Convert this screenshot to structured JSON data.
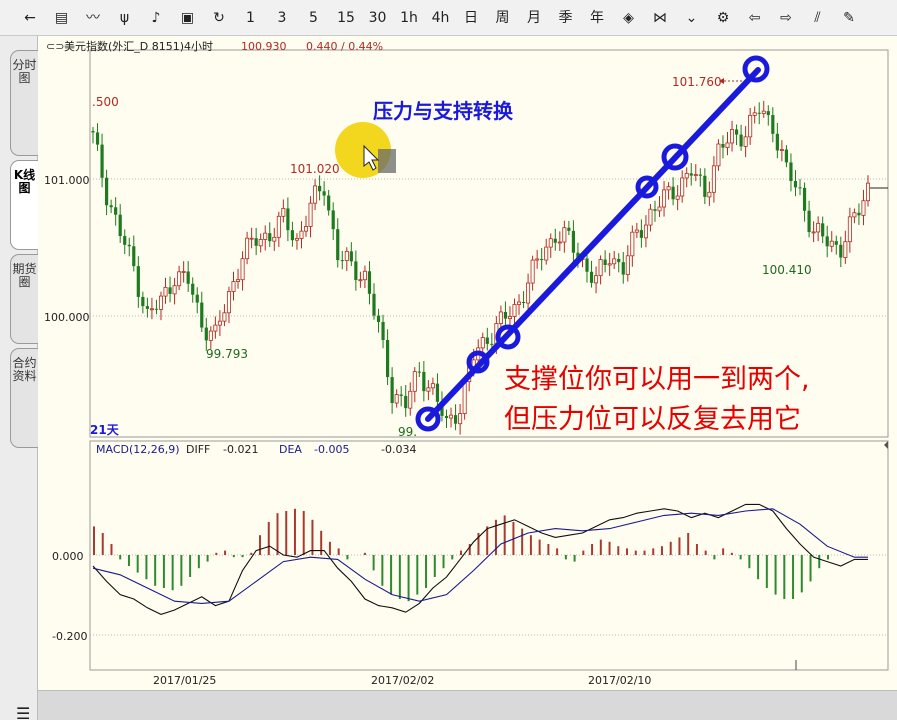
{
  "toolbar": {
    "buttons": [
      {
        "label": "←",
        "icon": "back-arrow-icon"
      },
      {
        "label": "▤",
        "icon": "list-icon"
      },
      {
        "label": "〰",
        "icon": "indicator-line-icon"
      },
      {
        "label": "ψ",
        "icon": "kline-icon"
      },
      {
        "label": "♪",
        "icon": "draw-tool-icon"
      },
      {
        "label": "▣",
        "icon": "save-icon"
      },
      {
        "label": "↻",
        "icon": "refresh-icon"
      },
      {
        "label": "1"
      },
      {
        "label": "3"
      },
      {
        "label": "5"
      },
      {
        "label": "15"
      },
      {
        "label": "30"
      },
      {
        "label": "1h"
      },
      {
        "label": "4h"
      },
      {
        "label": "日"
      },
      {
        "label": "周"
      },
      {
        "label": "月"
      },
      {
        "label": "季"
      },
      {
        "label": "年"
      },
      {
        "label": "◈",
        "icon": "zoom-in-icon"
      },
      {
        "label": "⋈",
        "icon": "zoom-out-icon"
      },
      {
        "label": "⌄",
        "icon": "double-chevron-down-icon"
      },
      {
        "label": "⚙",
        "icon": "gear-icon"
      },
      {
        "label": "⇦",
        "icon": "left-arrow-icon"
      },
      {
        "label": "⇨",
        "icon": "right-arrow-icon"
      },
      {
        "label": "⫽",
        "icon": "line-draw-icon"
      },
      {
        "label": "✎",
        "icon": "eraser-icon"
      }
    ]
  },
  "side_tabs": [
    {
      "label": "分时图",
      "active": false
    },
    {
      "label": "K线图",
      "active": true
    },
    {
      "label": "期货圈",
      "active": false
    },
    {
      "label": "合约资料",
      "active": false
    }
  ],
  "header": {
    "instrument": "美元指数(外汇_D 8151)4小时",
    "price": "100.930",
    "change": "0.440 / 0.44%"
  },
  "annotations": {
    "title": "压力与支持转换",
    "note_line1": "支撑位你可以用一到两个,",
    "note_line2": "但压力位可以反复去用它"
  },
  "price_labels": {
    "high_right": "101.760",
    "left_top": ".500",
    "mid_high": "101.020",
    "low_left": "99.793",
    "low_mid": "99.",
    "low_right": "100.410",
    "period": "21天"
  },
  "macd_header": {
    "name": "MACD(12,26,9)",
    "diff_label": "DIFF",
    "diff_value": "-0.021",
    "dea_label": "DEA",
    "dea_value": "-0.005",
    "macd_value": "-0.034"
  },
  "colors": {
    "up": "#b22a22",
    "down": "#1e7a1e",
    "annotation_blue": "#1a1adc",
    "annotation_red": "#e60000",
    "highlight_yellow": "#f2d20c"
  },
  "chart_data": [
    {
      "type": "candlestick",
      "title": "",
      "y_ticks": [
        100.0,
        101.0
      ],
      "y_tick_labels": [
        "100.000",
        "101.000"
      ],
      "ylim": [
        99.0,
        101.9
      ],
      "x_tick_labels": [
        "2017/01/25",
        "2017/02/02",
        "2017/02/10"
      ],
      "close_path": [
        [
          0,
          101.3
        ],
        [
          3,
          100.9
        ],
        [
          6,
          100.6
        ],
        [
          9,
          100.35
        ],
        [
          12,
          100.0
        ],
        [
          15,
          100.1
        ],
        [
          18,
          100.3
        ],
        [
          21,
          100.25
        ],
        [
          24,
          99.95
        ],
        [
          27,
          99.85
        ],
        [
          30,
          100.15
        ],
        [
          33,
          100.45
        ],
        [
          36,
          100.55
        ],
        [
          39,
          100.6
        ],
        [
          42,
          100.7
        ],
        [
          45,
          100.55
        ],
        [
          48,
          100.8
        ],
        [
          51,
          100.95
        ],
        [
          54,
          100.45
        ],
        [
          57,
          100.35
        ],
        [
          60,
          100.3
        ],
        [
          63,
          99.9
        ],
        [
          66,
          99.45
        ],
        [
          69,
          99.35
        ],
        [
          72,
          99.6
        ],
        [
          75,
          99.45
        ],
        [
          78,
          99.2
        ],
        [
          81,
          99.35
        ],
        [
          84,
          99.7
        ],
        [
          87,
          99.85
        ],
        [
          90,
          99.95
        ],
        [
          93,
          100.05
        ],
        [
          96,
          100.25
        ],
        [
          99,
          100.45
        ],
        [
          102,
          100.6
        ],
        [
          105,
          100.55
        ],
        [
          108,
          100.4
        ],
        [
          111,
          100.25
        ],
        [
          114,
          100.45
        ],
        [
          117,
          100.35
        ],
        [
          120,
          100.6
        ],
        [
          123,
          100.75
        ],
        [
          126,
          100.85
        ],
        [
          129,
          100.95
        ],
        [
          132,
          101.05
        ],
        [
          135,
          100.9
        ],
        [
          138,
          101.2
        ],
        [
          141,
          101.3
        ],
        [
          144,
          101.35
        ],
        [
          147,
          101.5
        ],
        [
          150,
          101.4
        ],
        [
          153,
          101.05
        ],
        [
          156,
          100.9
        ],
        [
          159,
          100.6
        ],
        [
          162,
          100.55
        ],
        [
          165,
          100.5
        ],
        [
          168,
          100.7
        ],
        [
          171,
          100.95
        ]
      ],
      "annotations": [
        {
          "label": "101.760",
          "value": 101.76
        },
        {
          "label": "101.020",
          "value": 101.02
        },
        {
          "label": "99.793",
          "value": 99.793
        },
        {
          "label": "100.410",
          "value": 100.41
        }
      ]
    },
    {
      "type": "line",
      "title": "MACD(12,26,9)",
      "y_ticks": [
        0.0,
        -0.2
      ],
      "y_tick_labels": [
        "0.000",
        "-0.200"
      ],
      "ylim": [
        -0.28,
        0.22
      ],
      "series": [
        {
          "name": "DIFF",
          "points": [
            [
              0,
              -0.05
            ],
            [
              3,
              -0.12
            ],
            [
              6,
              -0.18
            ],
            [
              9,
              -0.2
            ],
            [
              12,
              -0.24
            ],
            [
              15,
              -0.27
            ],
            [
              18,
              -0.25
            ],
            [
              21,
              -0.22
            ],
            [
              24,
              -0.19
            ],
            [
              27,
              -0.23
            ],
            [
              30,
              -0.21
            ],
            [
              33,
              -0.07
            ],
            [
              36,
              0.02
            ],
            [
              39,
              0.04
            ],
            [
              42,
              0.0
            ],
            [
              45,
              -0.01
            ],
            [
              48,
              0.02
            ],
            [
              51,
              0.02
            ],
            [
              54,
              -0.06
            ],
            [
              57,
              -0.12
            ],
            [
              60,
              -0.2
            ],
            [
              63,
              -0.23
            ],
            [
              66,
              -0.24
            ],
            [
              69,
              -0.26
            ],
            [
              72,
              -0.22
            ],
            [
              75,
              -0.15
            ],
            [
              78,
              -0.1
            ],
            [
              81,
              -0.02
            ],
            [
              84,
              0.06
            ],
            [
              87,
              0.12
            ],
            [
              90,
              0.14
            ],
            [
              93,
              0.16
            ],
            [
              96,
              0.13
            ],
            [
              99,
              0.1
            ],
            [
              102,
              0.08
            ],
            [
              105,
              0.09
            ],
            [
              108,
              0.1
            ],
            [
              111,
              0.13
            ],
            [
              114,
              0.16
            ],
            [
              117,
              0.17
            ],
            [
              120,
              0.19
            ],
            [
              123,
              0.2
            ],
            [
              126,
              0.21
            ],
            [
              129,
              0.2
            ],
            [
              132,
              0.17
            ],
            [
              135,
              0.19
            ],
            [
              138,
              0.17
            ],
            [
              141,
              0.2
            ],
            [
              144,
              0.23
            ],
            [
              147,
              0.23
            ],
            [
              150,
              0.2
            ],
            [
              153,
              0.12
            ],
            [
              156,
              0.05
            ],
            [
              159,
              -0.01
            ],
            [
              162,
              -0.03
            ],
            [
              165,
              -0.05
            ],
            [
              168,
              -0.02
            ],
            [
              171,
              -0.02
            ]
          ]
        },
        {
          "name": "DEA",
          "points": [
            [
              0,
              -0.06
            ],
            [
              6,
              -0.09
            ],
            [
              12,
              -0.15
            ],
            [
              18,
              -0.21
            ],
            [
              24,
              -0.22
            ],
            [
              30,
              -0.21
            ],
            [
              36,
              -0.12
            ],
            [
              42,
              -0.03
            ],
            [
              48,
              -0.01
            ],
            [
              54,
              -0.02
            ],
            [
              60,
              -0.11
            ],
            [
              66,
              -0.18
            ],
            [
              72,
              -0.21
            ],
            [
              78,
              -0.18
            ],
            [
              84,
              -0.07
            ],
            [
              90,
              0.05
            ],
            [
              96,
              0.1
            ],
            [
              102,
              0.12
            ],
            [
              108,
              0.11
            ],
            [
              114,
              0.12
            ],
            [
              120,
              0.15
            ],
            [
              126,
              0.18
            ],
            [
              132,
              0.19
            ],
            [
              138,
              0.18
            ],
            [
              144,
              0.2
            ],
            [
              150,
              0.21
            ],
            [
              156,
              0.14
            ],
            [
              162,
              0.04
            ],
            [
              168,
              -0.01
            ],
            [
              171,
              -0.01
            ]
          ]
        }
      ],
      "histogram": [
        0.13,
        0.1,
        0.05,
        -0.02,
        -0.05,
        -0.08,
        -0.11,
        -0.14,
        -0.15,
        -0.16,
        -0.14,
        -0.1,
        -0.06,
        -0.03,
        0.01,
        0.02,
        -0.01,
        -0.01,
        0.01,
        0.09,
        0.15,
        0.19,
        0.2,
        0.21,
        0.2,
        0.16,
        0.11,
        0.06,
        0.03,
        -0.02,
        0.0,
        0.01,
        -0.07,
        -0.14,
        -0.18,
        -0.2,
        -0.21,
        -0.18,
        -0.15,
        -0.1,
        -0.06,
        -0.02,
        0.02,
        0.05,
        0.1,
        0.13,
        0.16,
        0.18,
        0.15,
        0.12,
        0.09,
        0.07,
        0.05,
        0.03,
        -0.02,
        -0.03,
        0.02,
        0.05,
        0.07,
        0.06,
        0.04,
        0.03,
        0.02,
        0.02,
        0.03,
        0.04,
        0.06,
        0.08,
        0.1,
        0.05,
        0.02,
        -0.02,
        0.03,
        0.01,
        -0.02,
        -0.06,
        -0.11,
        -0.15,
        -0.18,
        -0.2,
        -0.2,
        -0.17,
        -0.12,
        -0.06,
        -0.02
      ]
    }
  ]
}
